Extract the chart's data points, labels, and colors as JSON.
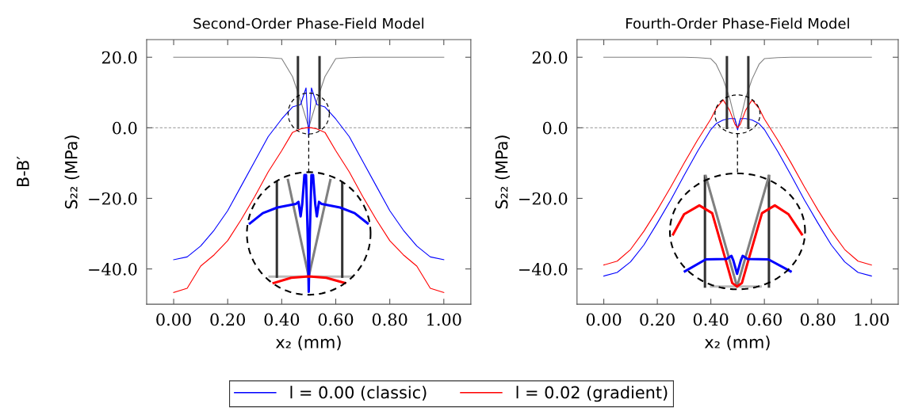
{
  "chart_data": [
    {
      "type": "line",
      "title": "Second-Order Phase-Field Model",
      "xlabel": "x₂ (mm)",
      "ylabel": "S₂₂ (MPa)",
      "annotations": [
        "B-B′"
      ],
      "x": [
        0,
        0.05,
        0.1,
        0.15,
        0.2,
        0.25,
        0.3,
        0.35,
        0.4,
        0.44,
        0.47,
        0.49,
        0.5,
        0.51,
        0.53,
        0.56,
        0.6,
        0.65,
        0.7,
        0.75,
        0.8,
        0.85,
        0.9,
        0.95,
        1.0
      ],
      "xlim": [
        -0.1,
        1.1
      ],
      "ylim": [
        -50,
        25
      ],
      "xticks": [
        {
          "value": 0,
          "label": "0.00"
        },
        {
          "value": 0.2,
          "label": "0.20"
        },
        {
          "value": 0.4,
          "label": "0.40"
        },
        {
          "value": 0.6,
          "label": "0.60"
        },
        {
          "value": 0.8,
          "label": "0.80"
        },
        {
          "value": 1.0,
          "label": "1.00"
        }
      ],
      "yticks": [
        {
          "value": -40,
          "label": "−40.0"
        },
        {
          "value": -20,
          "label": "−20.0"
        },
        {
          "value": 0,
          "label": "0.0"
        },
        {
          "value": 20,
          "label": "20.0"
        }
      ],
      "ref_lines": [
        {
          "axis": "y",
          "value": 0,
          "color": "#aaaaaa",
          "line_style": "dashed"
        }
      ],
      "legend": "bottom",
      "series": [
        {
          "color": "#808080",
          "values": [
            20,
            20,
            20,
            20,
            20,
            20,
            20,
            19.9,
            19.6,
            14.5,
            7.7,
            2.6,
            0,
            2.6,
            7.7,
            14.5,
            19.6,
            19.9,
            20,
            20,
            20,
            20,
            20,
            20,
            20
          ]
        },
        {
          "name": "l = 0.00 (classic)",
          "color": "#0000ff",
          "values": [
            -37.4,
            -36.6,
            -33.5,
            -29,
            -23.5,
            -16.5,
            -9.5,
            -2.5,
            2.5,
            5.9,
            6.6,
            11.3,
            -2.7,
            11.3,
            6.6,
            5.9,
            2.5,
            -2.5,
            -9.5,
            -16.5,
            -23.5,
            -29,
            -33.5,
            -36.6,
            -37.4
          ]
        },
        {
          "name": "l = 0.02 (gradient)",
          "color": "#ff0000",
          "values": [
            -46.7,
            -45.5,
            -39.2,
            -36,
            -32,
            -26,
            -19.5,
            -12.5,
            -6.5,
            -1.3,
            -0.3,
            0,
            0,
            0,
            -0.3,
            -1.3,
            -6.5,
            -12.5,
            -19.5,
            -26,
            -32,
            -36,
            -39.2,
            -45.5,
            -46.7
          ]
        },
        {
          "color": "#333333",
          "x": [
            0.46,
            0.46
          ],
          "values": [
            20,
            0
          ]
        },
        {
          "color": "#333333",
          "x": [
            0.54,
            0.54
          ],
          "values": [
            20,
            0
          ]
        },
        {
          "color": "#bbbbbb",
          "x": [
            0.355,
            0.663
          ],
          "values": [
            -42.2,
            -42.2
          ]
        },
        {
          "color": "#333333",
          "x": [
            0.382,
            0.382
          ],
          "values": [
            -15.5,
            -42.2
          ]
        },
        {
          "color": "#333333",
          "x": [
            0.624,
            0.624
          ],
          "values": [
            -15.5,
            -42.2
          ]
        },
        {
          "color": "#808080",
          "x": [
            0.423,
            0.5,
            0.58
          ],
          "values": [
            -14.8,
            -42.2,
            -14.8
          ]
        },
        {
          "color": "#0000ff",
          "x": [
            0.282,
            0.33,
            0.384,
            0.452,
            0.462,
            0.47,
            0.476,
            0.484,
            0.49,
            0.496,
            0.5,
            0.504,
            0.51,
            0.516,
            0.524,
            0.53,
            0.538,
            0.548,
            0.616,
            0.67,
            0.718
          ],
          "values": [
            -27.1,
            -24.2,
            -22.6,
            -21.6,
            -21.0,
            -25.1,
            -21.6,
            -13.4,
            -13.4,
            -30,
            -46.5,
            -30,
            -13.4,
            -13.4,
            -21.6,
            -25.1,
            -21.0,
            -21.6,
            -22.6,
            -24.2,
            -27.1
          ]
        },
        {
          "color": "#ff0000",
          "x": [
            0.37,
            0.435,
            0.5,
            0.565,
            0.634
          ],
          "values": [
            -44,
            -42.5,
            -42.1,
            -42.5,
            -44
          ]
        }
      ]
    },
    {
      "type": "line",
      "title": "Fourth-Order Phase-Field Model",
      "xlabel": "x₂ (mm)",
      "ylabel": "S₂₂ (MPa)",
      "x": [
        0,
        0.05,
        0.1,
        0.15,
        0.2,
        0.25,
        0.3,
        0.35,
        0.4,
        0.42,
        0.446,
        0.47,
        0.49,
        0.5,
        0.51,
        0.53,
        0.554,
        0.58,
        0.6,
        0.65,
        0.7,
        0.75,
        0.8,
        0.85,
        0.9,
        0.95,
        1.0
      ],
      "xlim": [
        -0.1,
        1.1
      ],
      "ylim": [
        -50,
        25
      ],
      "xticks": [
        {
          "value": 0,
          "label": "0.00"
        },
        {
          "value": 0.2,
          "label": "0.20"
        },
        {
          "value": 0.4,
          "label": "0.40"
        },
        {
          "value": 0.6,
          "label": "0.60"
        },
        {
          "value": 0.8,
          "label": "0.80"
        },
        {
          "value": 1.0,
          "label": "1.00"
        }
      ],
      "yticks": [
        {
          "value": -40,
          "label": "−40.0"
        },
        {
          "value": -20,
          "label": "−20.0"
        },
        {
          "value": 0,
          "label": "0.0"
        },
        {
          "value": 20,
          "label": "20.0"
        }
      ],
      "ref_lines": [
        {
          "axis": "y",
          "value": 0,
          "color": "#aaaaaa",
          "line_style": "dashed"
        }
      ],
      "series": [
        {
          "color": "#808080",
          "values": [
            20,
            20,
            20,
            20,
            20,
            20,
            20,
            19.9,
            19.6,
            18.0,
            13.8,
            8.5,
            2.3,
            0,
            2.3,
            8.5,
            13.8,
            18.0,
            19.6,
            19.9,
            20,
            20,
            20,
            20,
            20,
            20,
            20
          ]
        },
        {
          "color": "#0000ff",
          "values": [
            -42.0,
            -41,
            -38,
            -33.2,
            -27,
            -20.5,
            -13.5,
            -6.7,
            -0.5,
            1.2,
            2.2,
            2.6,
            2.6,
            -0.6,
            2.6,
            2.6,
            2.2,
            1.2,
            -0.5,
            -6.7,
            -13.5,
            -20.5,
            -27,
            -33.2,
            -38,
            -41,
            -42.0
          ]
        },
        {
          "color": "#ff0000",
          "values": [
            -38.9,
            -37.8,
            -34.5,
            -29.3,
            -23.3,
            -16.8,
            -10,
            -3.5,
            2.5,
            5.5,
            7.9,
            5,
            1,
            0,
            1,
            5,
            7.9,
            5.5,
            2.5,
            -3.5,
            -10,
            -16.8,
            -23.3,
            -29.3,
            -34.5,
            -37.8,
            -38.9
          ]
        },
        {
          "color": "#333333",
          "x": [
            0.46,
            0.46
          ],
          "values": [
            20,
            0
          ]
        },
        {
          "color": "#333333",
          "x": [
            0.54,
            0.54
          ],
          "values": [
            20,
            0
          ]
        },
        {
          "color": "#bbbbbb",
          "x": [
            0.401,
            0.586
          ],
          "values": [
            -45.0,
            -45.0
          ]
        },
        {
          "color": "#333333",
          "x": [
            0.378,
            0.378
          ],
          "values": [
            -13.7,
            -45.0
          ]
        },
        {
          "color": "#333333",
          "x": [
            0.617,
            0.617
          ],
          "values": [
            -13.7,
            -45.0
          ]
        },
        {
          "color": "#808080",
          "x": [
            0.381,
            0.498,
            0.617
          ],
          "values": [
            -13.7,
            -45.0,
            -13.7
          ]
        },
        {
          "color": "#ff0000",
          "x": [
            0.259,
            0.3,
            0.357,
            0.405,
            0.459,
            0.48,
            0.498,
            0.516,
            0.537,
            0.591,
            0.639,
            0.69,
            0.74
          ],
          "values": [
            -30.2,
            -24.5,
            -22.0,
            -24.2,
            -38.4,
            -44,
            -45.0,
            -44,
            -38.4,
            -24.2,
            -22.0,
            -24.5,
            -30.2
          ]
        },
        {
          "color": "#0000ff",
          "x": [
            0.303,
            0.381,
            0.459,
            0.477,
            0.484,
            0.498,
            0.512,
            0.519,
            0.537,
            0.615,
            0.698
          ],
          "values": [
            -40.7,
            -37.3,
            -37.2,
            -36.3,
            -37.6,
            -41.4,
            -37.6,
            -36.3,
            -37.2,
            -37.3,
            -40.7
          ]
        }
      ]
    }
  ]
}
